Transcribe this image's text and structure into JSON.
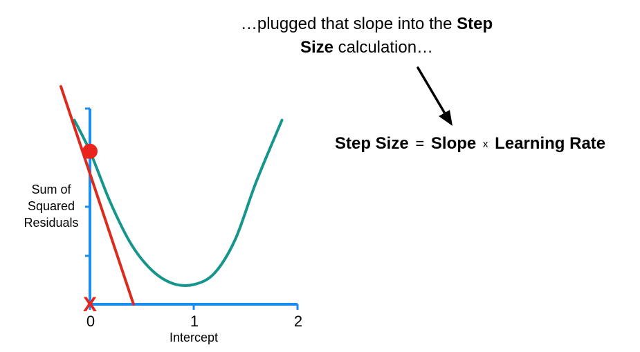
{
  "caption": {
    "part1": "…plugged that slope into the ",
    "bold1": "Step",
    "bold2": "Size",
    "part2": " calculation…"
  },
  "formula": {
    "term1": "Step Size",
    "equals": "=",
    "term2": "Slope",
    "times": "x",
    "term3": "Learning Rate"
  },
  "chart_data": {
    "type": "line",
    "xlabel": "Intercept",
    "ylabel": [
      "Sum of",
      "Squared",
      "Residuals"
    ],
    "x_ticks": [
      "0",
      "1",
      "2"
    ],
    "xlim": [
      0,
      2
    ],
    "series": [
      {
        "kind": "curve",
        "color": "#16958c",
        "x": [
          -0.15,
          0.0,
          0.2,
          0.4,
          0.6,
          0.8,
          1.0,
          1.2,
          1.4,
          1.6,
          1.85
        ],
        "y": [
          3.55,
          2.95,
          1.95,
          1.15,
          0.65,
          0.4,
          0.38,
          0.6,
          1.25,
          2.35,
          3.55
        ]
      },
      {
        "kind": "tangent",
        "color": "#dd2a1f",
        "x": [
          -0.28,
          0.42
        ],
        "y": [
          4.2,
          0.0
        ]
      }
    ],
    "point": {
      "x": 0,
      "y": 2.95,
      "color": "#e8241c"
    },
    "start_marker": {
      "x": 0,
      "symbol": "X",
      "color": "#e8241c"
    },
    "axis_color": "#1a8ef0"
  },
  "arrow": {
    "color": "#000000"
  }
}
